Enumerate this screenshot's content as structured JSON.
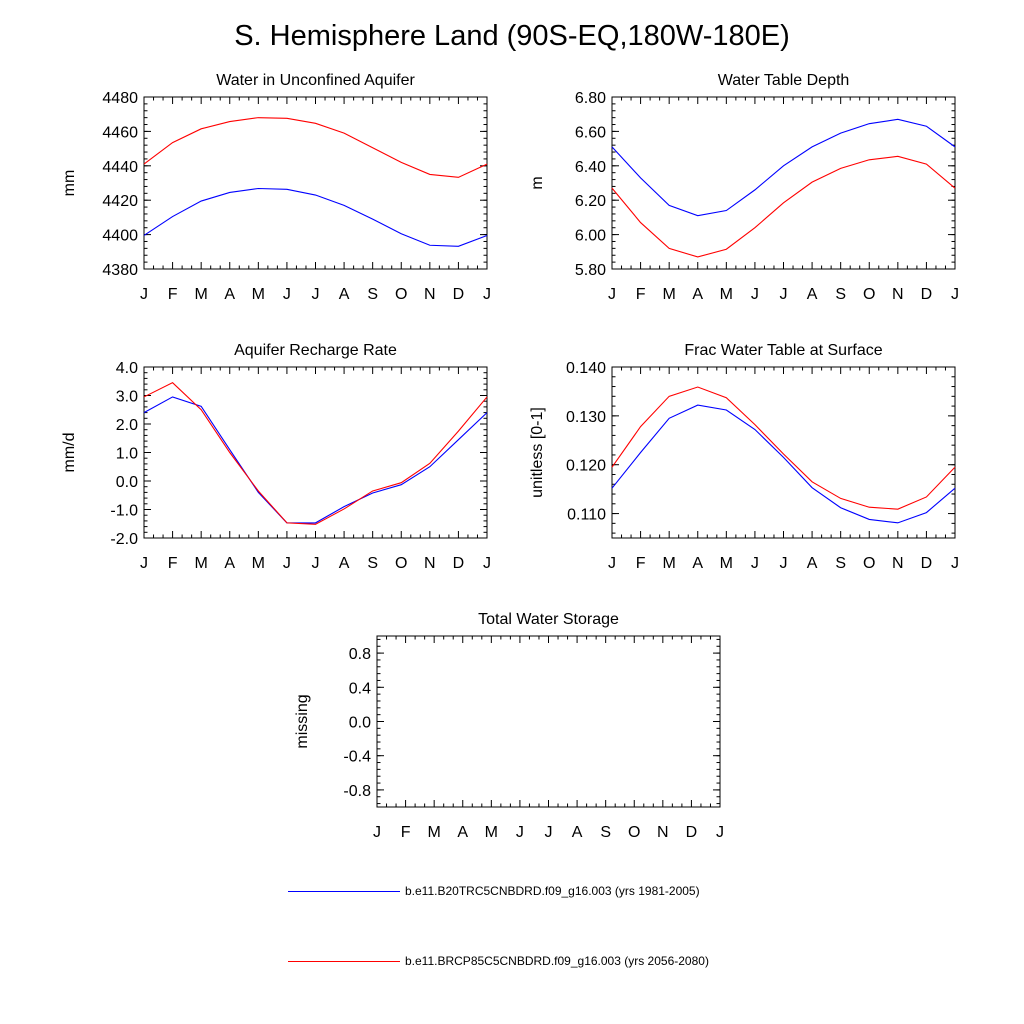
{
  "figure": {
    "title": "S. Hemisphere Land (90S-EQ,180W-180E)"
  },
  "series": [
    {
      "name": "b.e11.B20TRC5CNBDRD.f09_g16.003 (yrs 1981-2005)",
      "color": "#0000ff"
    },
    {
      "name": "b.e11.BRCP85C5CNBDRD.f09_g16.003 (yrs 2056-2080)",
      "color": "#ff0000"
    }
  ],
  "chart_data": [
    {
      "type": "line",
      "title": "Water in Unconfined Aquifer",
      "xlabel": "",
      "ylabel": "mm",
      "categories": [
        "J",
        "F",
        "M",
        "A",
        "M",
        "J",
        "J",
        "A",
        "S",
        "O",
        "N",
        "D",
        "J"
      ],
      "ylim": [
        4380,
        4480
      ],
      "yticks": [
        4380,
        4400,
        4420,
        4440,
        4460,
        4480
      ],
      "ytick_labels": [
        "4380",
        "4400",
        "4420",
        "4440",
        "4460",
        "4480"
      ],
      "series": [
        {
          "name": "b.e11.B20TRC5CNBDRD.f09_g16.003 (yrs 1981-2005)",
          "color": "#0000ff",
          "values": [
            4399.5,
            4410.5,
            4419.5,
            4424.5,
            4426.8,
            4426.3,
            4423.0,
            4417.0,
            4409.0,
            4400.5,
            4393.8,
            4393.2,
            4399.5
          ]
        },
        {
          "name": "b.e11.BRCP85C5CNBDRD.f09_g16.003 (yrs 2056-2080)",
          "color": "#ff0000",
          "values": [
            4441.0,
            4453.5,
            4461.5,
            4465.7,
            4468.0,
            4467.6,
            4464.7,
            4459.0,
            4450.5,
            4442.0,
            4435.0,
            4433.3,
            4441.0
          ]
        }
      ]
    },
    {
      "type": "line",
      "title": "Water Table Depth",
      "xlabel": "",
      "ylabel": "m",
      "categories": [
        "J",
        "F",
        "M",
        "A",
        "M",
        "J",
        "J",
        "A",
        "S",
        "O",
        "N",
        "D",
        "J"
      ],
      "ylim": [
        5.8,
        6.8
      ],
      "yticks": [
        5.8,
        6.0,
        6.2,
        6.4,
        6.6,
        6.8
      ],
      "ytick_labels": [
        "5.80",
        "6.00",
        "6.20",
        "6.40",
        "6.60",
        "6.80"
      ],
      "series": [
        {
          "name": "b.e11.B20TRC5CNBDRD.f09_g16.003 (yrs 1981-2005)",
          "color": "#0000ff",
          "values": [
            6.51,
            6.33,
            6.17,
            6.11,
            6.14,
            6.26,
            6.4,
            6.51,
            6.59,
            6.645,
            6.67,
            6.63,
            6.51
          ]
        },
        {
          "name": "b.e11.BRCP85C5CNBDRD.f09_g16.003 (yrs 2056-2080)",
          "color": "#ff0000",
          "values": [
            6.27,
            6.07,
            5.92,
            5.87,
            5.915,
            6.04,
            6.185,
            6.305,
            6.385,
            6.435,
            6.455,
            6.41,
            6.27
          ]
        }
      ]
    },
    {
      "type": "line",
      "title": "Aquifer Recharge Rate",
      "xlabel": "",
      "ylabel": "mm/d",
      "categories": [
        "J",
        "F",
        "M",
        "A",
        "M",
        "J",
        "J",
        "A",
        "S",
        "O",
        "N",
        "D",
        "J"
      ],
      "ylim": [
        -2.0,
        4.0
      ],
      "yticks": [
        -2,
        -1,
        0,
        1,
        2,
        3,
        4
      ],
      "ytick_labels": [
        "-2.0",
        "-1.0",
        "0.0",
        "1.0",
        "2.0",
        "3.0",
        "4.0"
      ],
      "series": [
        {
          "name": "b.e11.B20TRC5CNBDRD.f09_g16.003 (yrs 1981-2005)",
          "color": "#0000ff",
          "values": [
            2.4,
            2.95,
            2.62,
            1.1,
            -0.4,
            -1.47,
            -1.47,
            -0.9,
            -0.42,
            -0.13,
            0.5,
            1.45,
            2.4
          ]
        },
        {
          "name": "b.e11.BRCP85C5CNBDRD.f09_g16.003 (yrs 2056-2080)",
          "color": "#ff0000",
          "values": [
            2.95,
            3.45,
            2.5,
            1.0,
            -0.35,
            -1.47,
            -1.52,
            -0.98,
            -0.35,
            -0.06,
            0.62,
            1.75,
            2.95
          ]
        }
      ]
    },
    {
      "type": "line",
      "title": "Frac Water Table at Surface",
      "xlabel": "",
      "ylabel": "unitless [0-1]",
      "categories": [
        "J",
        "F",
        "M",
        "A",
        "M",
        "J",
        "J",
        "A",
        "S",
        "O",
        "N",
        "D",
        "J"
      ],
      "ylim": [
        0.105,
        0.14
      ],
      "yticks": [
        0.11,
        0.12,
        0.13,
        0.14
      ],
      "ytick_labels": [
        "0.110",
        "0.120",
        "0.130",
        "0.140"
      ],
      "series": [
        {
          "name": "b.e11.B20TRC5CNBDRD.f09_g16.003 (yrs 1981-2005)",
          "color": "#0000ff",
          "values": [
            0.1152,
            0.1225,
            0.1295,
            0.1322,
            0.1312,
            0.1272,
            0.1215,
            0.1153,
            0.1112,
            0.1088,
            0.1081,
            0.1102,
            0.1152
          ]
        },
        {
          "name": "b.e11.BRCP85C5CNBDRD.f09_g16.003 (yrs 2056-2080)",
          "color": "#ff0000",
          "values": [
            0.1195,
            0.1278,
            0.134,
            0.1359,
            0.1337,
            0.1282,
            0.1222,
            0.1165,
            0.1131,
            0.1113,
            0.1109,
            0.1134,
            0.1195
          ]
        }
      ]
    },
    {
      "type": "line",
      "title": "Total Water Storage",
      "xlabel": "",
      "ylabel": "missing",
      "categories": [
        "J",
        "F",
        "M",
        "A",
        "M",
        "J",
        "J",
        "A",
        "S",
        "O",
        "N",
        "D",
        "J"
      ],
      "ylim": [
        -1.0,
        1.0
      ],
      "yticks": [
        -0.8,
        -0.4,
        0.0,
        0.4,
        0.8
      ],
      "ytick_labels": [
        "-0.8",
        "-0.4",
        "0.0",
        "0.4",
        "0.8"
      ],
      "series": []
    }
  ]
}
